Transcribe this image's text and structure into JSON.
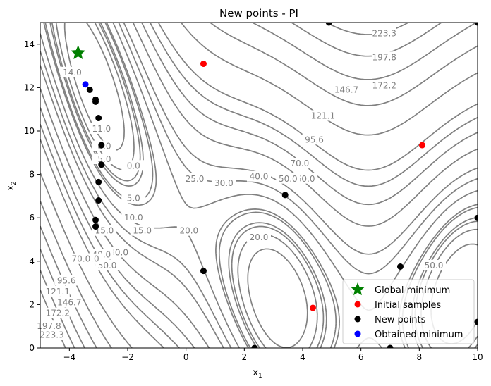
{
  "chart_data": {
    "type": "scatter",
    "title": "New points - PI",
    "xlabel": "x",
    "xlabel_sub": "1",
    "ylabel": "x",
    "ylabel_sub": "2",
    "xlim": [
      -5,
      10
    ],
    "ylim": [
      0,
      15
    ],
    "xticks": [
      -4,
      -2,
      0,
      2,
      4,
      6,
      8,
      10
    ],
    "yticks": [
      0,
      2,
      4,
      6,
      8,
      10,
      12,
      14
    ],
    "grid": false,
    "legend_position": "lower right",
    "contour_color": "#808080",
    "contour_levels": [
      0.0,
      5.0,
      8.0,
      10.0,
      11.0,
      14.0,
      15.0,
      20.0,
      25.0,
      30.0,
      40.0,
      50.0,
      60.0,
      70.0,
      95.6,
      121.1,
      146.7,
      172.2,
      197.8,
      223.3
    ],
    "contour_labels": [
      {
        "text": "223.3",
        "x": 6.8,
        "y": 14.5
      },
      {
        "text": "197.8",
        "x": 6.8,
        "y": 13.4
      },
      {
        "text": "172.2",
        "x": 6.8,
        "y": 12.1
      },
      {
        "text": "146.7",
        "x": 5.5,
        "y": 11.9
      },
      {
        "text": "121.1",
        "x": 4.7,
        "y": 10.7
      },
      {
        "text": "95.6",
        "x": 4.4,
        "y": 9.6
      },
      {
        "text": "70.0",
        "x": 3.9,
        "y": 8.5
      },
      {
        "text": "60.0",
        "x": 4.1,
        "y": 7.8
      },
      {
        "text": "50.0",
        "x": 3.5,
        "y": 7.8
      },
      {
        "text": "40.0",
        "x": 2.5,
        "y": 7.9
      },
      {
        "text": "30.0",
        "x": 1.3,
        "y": 7.6
      },
      {
        "text": "25.0",
        "x": 0.3,
        "y": 7.8
      },
      {
        "text": "20.0",
        "x": 0.1,
        "y": 5.4
      },
      {
        "text": "20.0",
        "x": 2.5,
        "y": 5.1
      },
      {
        "text": "15.0",
        "x": -1.5,
        "y": 5.4
      },
      {
        "text": "10.0",
        "x": -1.8,
        "y": 6.0
      },
      {
        "text": "5.0",
        "x": -1.8,
        "y": 6.9
      },
      {
        "text": "0.0",
        "x": -1.8,
        "y": 8.4
      },
      {
        "text": "5.0",
        "x": -2.8,
        "y": 8.7
      },
      {
        "text": "8.0",
        "x": -2.8,
        "y": 9.3
      },
      {
        "text": "11.0",
        "x": -2.9,
        "y": 10.1
      },
      {
        "text": "14.0",
        "x": -3.9,
        "y": 12.7
      },
      {
        "text": "15.0",
        "x": -2.8,
        "y": 5.4
      },
      {
        "text": "30.0",
        "x": -2.3,
        "y": 4.4
      },
      {
        "text": "40.0",
        "x": -2.9,
        "y": 4.3
      },
      {
        "text": "50.0",
        "x": -2.7,
        "y": 3.8
      },
      {
        "text": "60.0",
        "x": -3.3,
        "y": 4.1
      },
      {
        "text": "70.0",
        "x": -3.6,
        "y": 4.1
      },
      {
        "text": "95.6",
        "x": -4.1,
        "y": 3.1
      },
      {
        "text": "121.1",
        "x": -4.4,
        "y": 2.6
      },
      {
        "text": "146.7",
        "x": -4.0,
        "y": 2.1
      },
      {
        "text": "172.2",
        "x": -4.4,
        "y": 1.6
      },
      {
        "text": "197.8",
        "x": -4.7,
        "y": 1.0
      },
      {
        "text": "223.3",
        "x": -4.6,
        "y": 0.6
      },
      {
        "text": "50.0",
        "x": 8.5,
        "y": 3.8
      }
    ],
    "series": [
      {
        "name": "Global minimum",
        "marker": "star",
        "color": "#008000",
        "points": [
          [
            -3.7,
            13.6
          ]
        ]
      },
      {
        "name": "Initial samples",
        "marker": "circle",
        "color": "#ff0000",
        "points": [
          [
            0.6,
            13.1
          ],
          [
            8.1,
            9.35
          ],
          [
            4.35,
            1.85
          ]
        ]
      },
      {
        "name": "New points",
        "marker": "circle",
        "color": "#000000",
        "points": [
          [
            4.9,
            15.0
          ],
          [
            10.0,
            15.0
          ],
          [
            -3.3,
            11.9
          ],
          [
            -3.1,
            11.45
          ],
          [
            -3.1,
            11.35
          ],
          [
            -3.0,
            10.6
          ],
          [
            -2.9,
            9.35
          ],
          [
            -2.9,
            8.45
          ],
          [
            -3.0,
            7.65
          ],
          [
            -3.0,
            6.8
          ],
          [
            -3.1,
            5.9
          ],
          [
            -3.1,
            5.6
          ],
          [
            0.6,
            3.55
          ],
          [
            3.4,
            7.05
          ],
          [
            7.35,
            3.75
          ],
          [
            10.0,
            6.0
          ],
          [
            10.0,
            1.2
          ],
          [
            2.35,
            0.0
          ],
          [
            7.0,
            0.0
          ]
        ]
      },
      {
        "name": "Obtained minimum",
        "marker": "circle",
        "color": "#0000ff",
        "points": [
          [
            -3.45,
            12.15
          ]
        ]
      }
    ]
  }
}
